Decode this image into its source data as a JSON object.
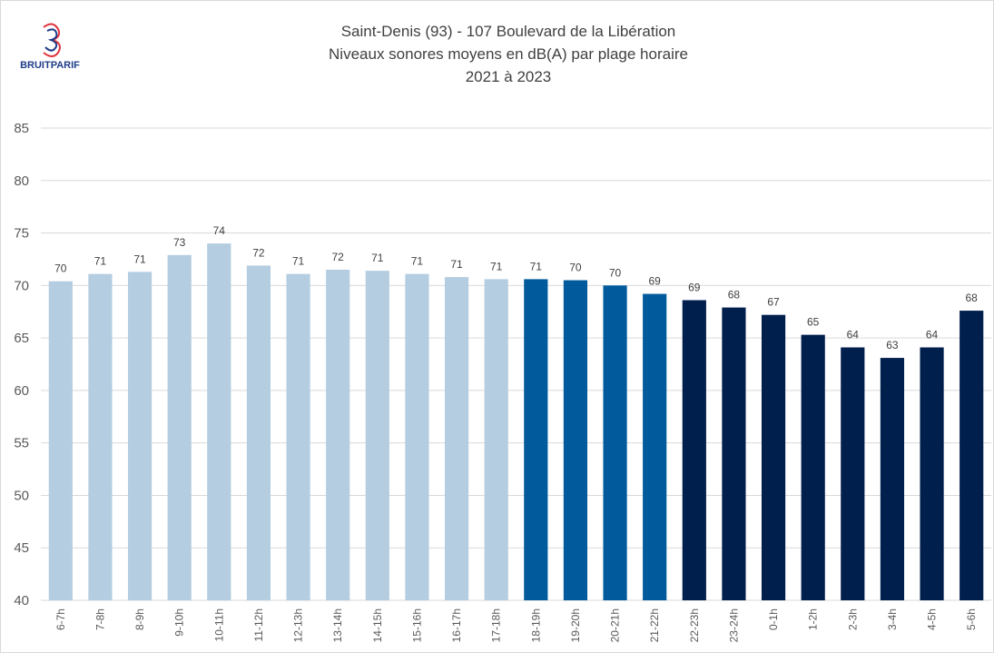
{
  "logo": "BRUITPARIF",
  "chart_data": {
    "type": "bar",
    "title": [
      "Saint-Denis (93) - 107 Boulevard de la Libération",
      "Niveaux sonores moyens en dB(A) par plage horaire",
      "2021 à 2023"
    ],
    "categories": [
      "6-7h",
      "7-8h",
      "8-9h",
      "9-10h",
      "10-11h",
      "11-12h",
      "12-13h",
      "13-14h",
      "14-15h",
      "15-16h",
      "16-17h",
      "17-18h",
      "18-19h",
      "19-20h",
      "20-21h",
      "21-22h",
      "22-23h",
      "23-24h",
      "0-1h",
      "1-2h",
      "2-3h",
      "3-4h",
      "4-5h",
      "5-6h"
    ],
    "values": [
      70.4,
      71.1,
      71.3,
      72.9,
      74.0,
      71.9,
      71.1,
      71.5,
      71.4,
      71.1,
      70.8,
      70.6,
      70.6,
      70.5,
      70.0,
      69.2,
      68.6,
      67.9,
      67.2,
      65.3,
      64.1,
      63.1,
      64.1,
      67.6
    ],
    "value_labels": [
      "70",
      "71",
      "71",
      "73",
      "74",
      "72",
      "71",
      "72",
      "71",
      "71",
      "71",
      "71",
      "71",
      "70",
      "70",
      "69",
      "69",
      "68",
      "67",
      "65",
      "64",
      "63",
      "64",
      "68"
    ],
    "colors": [
      "#b4cde0",
      "#b4cde0",
      "#b4cde0",
      "#b4cde0",
      "#b4cde0",
      "#b4cde0",
      "#b4cde0",
      "#b4cde0",
      "#b4cde0",
      "#b4cde0",
      "#b4cde0",
      "#b4cde0",
      "#005a9c",
      "#005a9c",
      "#005a9c",
      "#005a9c",
      "#001f4d",
      "#001f4d",
      "#001f4d",
      "#001f4d",
      "#001f4d",
      "#001f4d",
      "#001f4d",
      "#001f4d"
    ],
    "ylim": [
      40,
      85
    ],
    "yticks": [
      40,
      45,
      50,
      55,
      60,
      65,
      70,
      75,
      80,
      85
    ],
    "grid": true
  }
}
